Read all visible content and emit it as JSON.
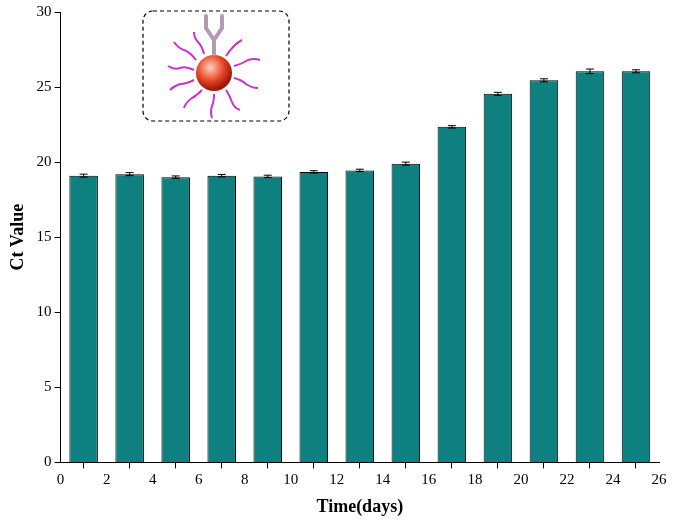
{
  "chart_data": {
    "type": "bar",
    "x_label": "Time(days)",
    "y_label": "Ct Value",
    "x": [
      1,
      3,
      5,
      7,
      9,
      11,
      13,
      15,
      17,
      19,
      21,
      23,
      25
    ],
    "values": [
      19.1,
      19.2,
      19.0,
      19.1,
      19.05,
      19.35,
      19.45,
      19.9,
      22.35,
      24.55,
      25.45,
      26.05,
      26.05
    ],
    "errors": [
      0.1,
      0.1,
      0.08,
      0.08,
      0.08,
      0.08,
      0.08,
      0.1,
      0.08,
      0.1,
      0.1,
      0.15,
      0.1
    ],
    "color": "#0e8080",
    "xlim": [
      0,
      26
    ],
    "xticks": [
      0,
      2,
      4,
      6,
      8,
      10,
      12,
      14,
      16,
      18,
      20,
      22,
      24,
      26
    ],
    "ylim": [
      0,
      30
    ],
    "yticks": [
      0,
      5,
      10,
      15,
      20,
      25,
      30
    ],
    "grid": false
  }
}
